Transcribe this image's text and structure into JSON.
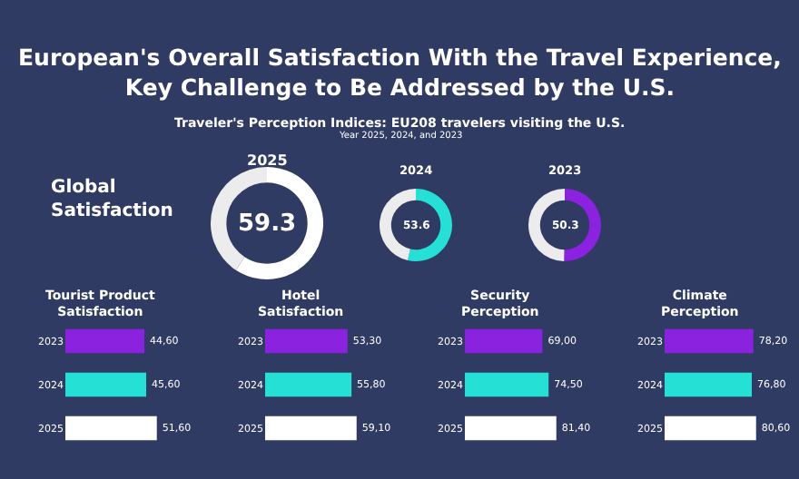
{
  "chart_data": [
    {
      "type": "other",
      "title": "European's Overall Satisfaction With the Travel Experience, Key Challenge to Be Addressed by the U.S.",
      "subtitle": "Traveler's Perception Indices: EU208 travelers visiting the U.S.",
      "annotations": [
        "Year 2025, 2024, and 2023",
        "Global Satisfaction"
      ]
    },
    {
      "type": "donut",
      "title": "2025",
      "categories": [
        null,
        null
      ],
      "values": [
        59.3,
        40.7
      ],
      "colors": [
        "#ffffff",
        "#ececec"
      ],
      "annotations": [
        "59.3"
      ]
    },
    {
      "type": "donut",
      "title": "2024",
      "categories": [
        null,
        null
      ],
      "values": [
        53.6,
        46.4
      ],
      "colors": [
        "#25e0d5",
        "#ececec"
      ],
      "annotations": [
        "53.6"
      ]
    },
    {
      "type": "donut",
      "title": "2023",
      "categories": [
        null,
        null
      ],
      "values": [
        50.3,
        49.7
      ],
      "colors": [
        "#8a22e0",
        "#ececec"
      ],
      "annotations": [
        "50.3"
      ]
    },
    {
      "type": "bar",
      "orientation": "horizontal",
      "title": "Tourist Product Satisfaction",
      "categories": [
        "2023",
        "2024",
        "2025"
      ],
      "values": [
        44.6,
        45.6,
        51.6
      ],
      "colors": [
        "#8a22e0",
        "#25e0d5",
        "#ffffff"
      ],
      "value_labels": [
        "44,60",
        "45,60",
        "51,60"
      ]
    },
    {
      "type": "bar",
      "orientation": "horizontal",
      "title": "Hotel Satisfaction",
      "categories": [
        "2023",
        "2024",
        "2025"
      ],
      "values": [
        53.3,
        55.8,
        59.1
      ],
      "colors": [
        "#8a22e0",
        "#25e0d5",
        "#ffffff"
      ],
      "value_labels": [
        "53,30",
        "55,80",
        "59,10"
      ]
    },
    {
      "type": "bar",
      "orientation": "horizontal",
      "title": "Security Perception",
      "categories": [
        "2023",
        "2024",
        "2025"
      ],
      "values": [
        69.0,
        74.5,
        81.4
      ],
      "colors": [
        "#8a22e0",
        "#25e0d5",
        "#ffffff"
      ],
      "value_labels": [
        "69,00",
        "74,50",
        "81,40"
      ]
    },
    {
      "type": "bar",
      "orientation": "horizontal",
      "title": "Climate Perception",
      "categories": [
        "2023",
        "2024",
        "2025"
      ],
      "values": [
        78.2,
        76.8,
        80.6
      ],
      "colors": [
        "#8a22e0",
        "#25e0d5",
        "#ffffff"
      ],
      "value_labels": [
        "78,20",
        "76,80",
        "80,60"
      ]
    }
  ]
}
